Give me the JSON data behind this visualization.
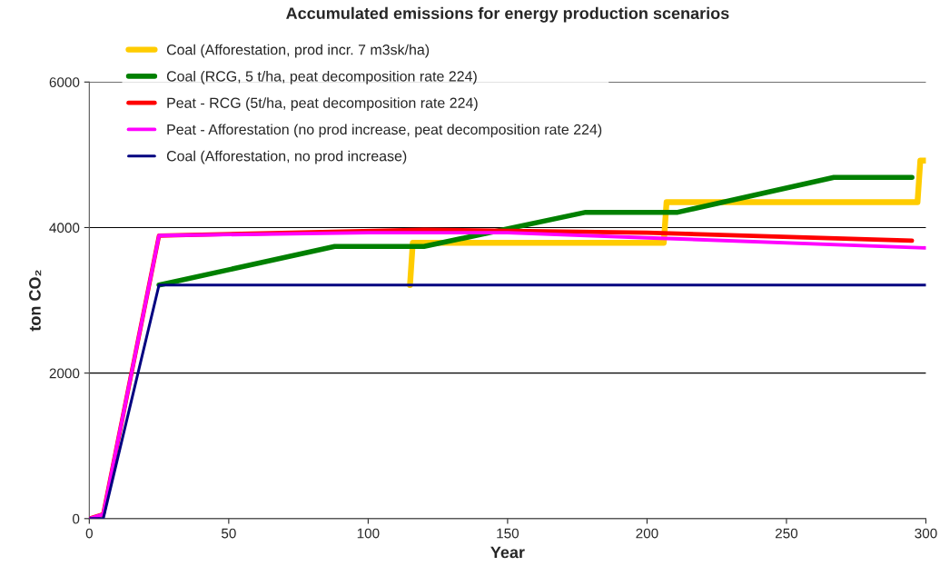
{
  "chart_data": {
    "type": "line",
    "title": "Accumulated emissions for energy production scenarios",
    "xlabel": "Year",
    "ylabel": "ton CO₂",
    "xlim": [
      0,
      300
    ],
    "xticks": [
      0,
      50,
      100,
      150,
      200,
      250,
      300
    ],
    "ylim": [
      0,
      6000
    ],
    "yticks": [
      0,
      2000,
      4000,
      6000
    ],
    "grid": "y",
    "legend": "top left",
    "marker": "none",
    "line_style": "solid",
    "series": [
      {
        "name": "Coal (Afforestation, prod incr. 7 m3sk/ha)",
        "color": "#ffcc00",
        "x": [
          115,
          116,
          206,
          207,
          297,
          298,
          300
        ],
        "values": [
          3210,
          3790,
          3790,
          4350,
          4350,
          4920,
          4920
        ]
      },
      {
        "name": "Coal (RCG, 5 t/ha, peat decomposition rate 224)",
        "color": "#008000",
        "x": [
          25,
          88,
          120,
          178,
          211,
          267,
          295
        ],
        "values": [
          3210,
          3740,
          3740,
          4210,
          4210,
          4690,
          4690
        ]
      },
      {
        "name": "Peat - RCG (5t/ha, peat decomposition rate 224)",
        "color": "#ff0000",
        "x": [
          0,
          5,
          25,
          120,
          200,
          295
        ],
        "values": [
          0,
          60,
          3890,
          3970,
          3930,
          3820
        ]
      },
      {
        "name": "Peat - Afforestation (no prod increase, peat decomposition rate 224)",
        "color": "#ff00ff",
        "x": [
          0,
          5,
          25,
          100,
          150,
          200,
          300
        ],
        "values": [
          0,
          60,
          3890,
          3930,
          3930,
          3860,
          3720
        ]
      },
      {
        "name": "Coal (Afforestation, no prod increase)",
        "color": "#000080",
        "x": [
          0,
          5,
          25,
          300
        ],
        "values": [
          0,
          0,
          3210,
          3210
        ]
      }
    ]
  }
}
